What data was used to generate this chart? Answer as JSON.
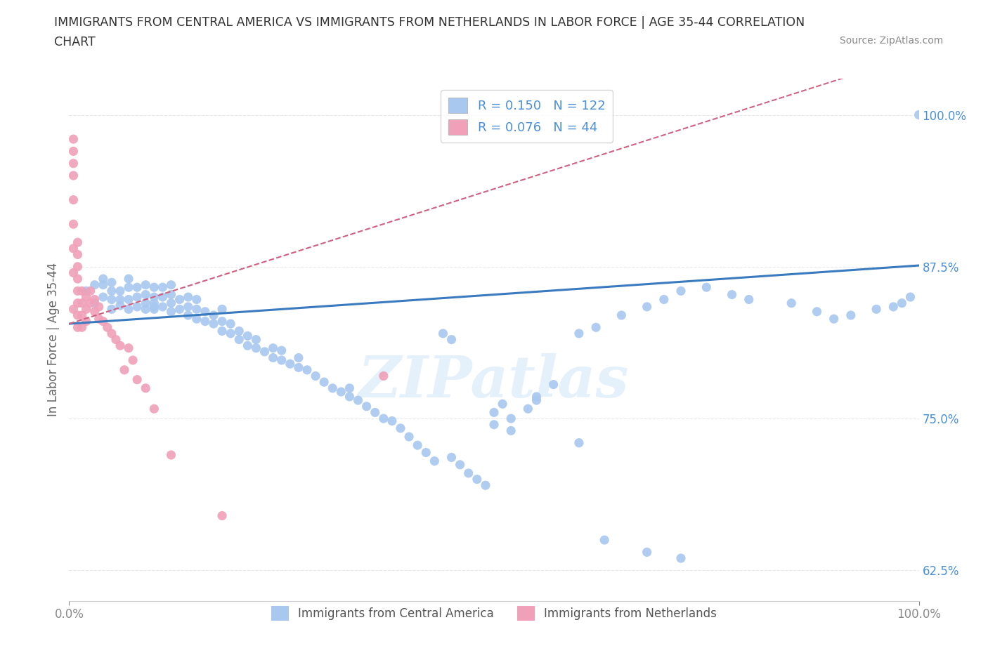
{
  "title_line1": "IMMIGRANTS FROM CENTRAL AMERICA VS IMMIGRANTS FROM NETHERLANDS IN LABOR FORCE | AGE 35-44 CORRELATION",
  "title_line2": "CHART",
  "source": "Source: ZipAtlas.com",
  "ylabel": "In Labor Force | Age 35-44",
  "R_blue": 0.15,
  "N_blue": 122,
  "R_pink": 0.076,
  "N_pink": 44,
  "color_blue": "#a8c8f0",
  "color_pink": "#f0a0b8",
  "trendline_blue": "#3a7abf",
  "trendline_pink": "#d06080",
  "legend_text_color": "#4a90d9",
  "background_color": "#ffffff",
  "grid_color": "#e8e8e8",
  "xlim": [
    0.0,
    1.0
  ],
  "ylim": [
    0.6,
    1.03
  ],
  "yticks": [
    0.625,
    0.75,
    0.875,
    1.0
  ],
  "ytick_labels": [
    "62.5%",
    "75.0%",
    "87.5%",
    "100.0%"
  ],
  "xtick_labels": [
    "0.0%",
    "100.0%"
  ],
  "watermark": "ZIPatlas",
  "blue_x": [
    0.02,
    0.03,
    0.03,
    0.04,
    0.04,
    0.04,
    0.05,
    0.05,
    0.05,
    0.05,
    0.06,
    0.06,
    0.06,
    0.07,
    0.07,
    0.07,
    0.07,
    0.08,
    0.08,
    0.08,
    0.09,
    0.09,
    0.09,
    0.09,
    0.1,
    0.1,
    0.1,
    0.1,
    0.1,
    0.11,
    0.11,
    0.11,
    0.12,
    0.12,
    0.12,
    0.12,
    0.13,
    0.13,
    0.14,
    0.14,
    0.14,
    0.15,
    0.15,
    0.15,
    0.16,
    0.16,
    0.17,
    0.17,
    0.18,
    0.18,
    0.18,
    0.19,
    0.19,
    0.2,
    0.2,
    0.21,
    0.21,
    0.22,
    0.22,
    0.23,
    0.24,
    0.24,
    0.25,
    0.25,
    0.26,
    0.27,
    0.27,
    0.28,
    0.29,
    0.3,
    0.31,
    0.32,
    0.33,
    0.33,
    0.34,
    0.35,
    0.36,
    0.37,
    0.38,
    0.39,
    0.4,
    0.41,
    0.42,
    0.43,
    0.45,
    0.46,
    0.47,
    0.48,
    0.49,
    0.5,
    0.51,
    0.52,
    0.54,
    0.55,
    0.57,
    0.6,
    0.62,
    0.65,
    0.68,
    0.7,
    0.72,
    0.75,
    0.78,
    0.8,
    0.85,
    0.88,
    0.9,
    0.92,
    0.95,
    0.97,
    0.98,
    0.99,
    1.0,
    0.44,
    0.45,
    0.5,
    0.52,
    0.55,
    0.6,
    0.63,
    0.68,
    0.72
  ],
  "blue_y": [
    0.855,
    0.845,
    0.86,
    0.85,
    0.86,
    0.865,
    0.848,
    0.855,
    0.862,
    0.84,
    0.843,
    0.855,
    0.848,
    0.848,
    0.858,
    0.865,
    0.84,
    0.842,
    0.85,
    0.858,
    0.845,
    0.852,
    0.86,
    0.84,
    0.842,
    0.85,
    0.858,
    0.845,
    0.84,
    0.842,
    0.85,
    0.858,
    0.838,
    0.845,
    0.852,
    0.86,
    0.84,
    0.848,
    0.835,
    0.842,
    0.85,
    0.832,
    0.84,
    0.848,
    0.83,
    0.838,
    0.828,
    0.835,
    0.822,
    0.83,
    0.84,
    0.82,
    0.828,
    0.815,
    0.822,
    0.81,
    0.818,
    0.808,
    0.815,
    0.805,
    0.8,
    0.808,
    0.798,
    0.806,
    0.795,
    0.792,
    0.8,
    0.79,
    0.785,
    0.78,
    0.775,
    0.772,
    0.768,
    0.775,
    0.765,
    0.76,
    0.755,
    0.75,
    0.748,
    0.742,
    0.735,
    0.728,
    0.722,
    0.715,
    0.718,
    0.712,
    0.705,
    0.7,
    0.695,
    0.755,
    0.762,
    0.75,
    0.758,
    0.765,
    0.778,
    0.82,
    0.825,
    0.835,
    0.842,
    0.848,
    0.855,
    0.858,
    0.852,
    0.848,
    0.845,
    0.838,
    0.832,
    0.835,
    0.84,
    0.842,
    0.845,
    0.85,
    1.0,
    0.82,
    0.815,
    0.745,
    0.74,
    0.768,
    0.73,
    0.65,
    0.64,
    0.635
  ],
  "pink_x": [
    0.005,
    0.005,
    0.005,
    0.005,
    0.005,
    0.005,
    0.005,
    0.005,
    0.005,
    0.01,
    0.01,
    0.01,
    0.01,
    0.01,
    0.01,
    0.01,
    0.01,
    0.015,
    0.015,
    0.015,
    0.015,
    0.02,
    0.02,
    0.02,
    0.025,
    0.025,
    0.03,
    0.03,
    0.035,
    0.035,
    0.04,
    0.045,
    0.05,
    0.055,
    0.06,
    0.065,
    0.07,
    0.075,
    0.08,
    0.09,
    0.1,
    0.12,
    0.18,
    0.37
  ],
  "pink_y": [
    0.87,
    0.89,
    0.91,
    0.93,
    0.95,
    0.96,
    0.97,
    0.98,
    0.84,
    0.845,
    0.855,
    0.865,
    0.875,
    0.885,
    0.895,
    0.835,
    0.825,
    0.845,
    0.855,
    0.835,
    0.825,
    0.85,
    0.84,
    0.83,
    0.845,
    0.855,
    0.838,
    0.848,
    0.832,
    0.842,
    0.83,
    0.825,
    0.82,
    0.815,
    0.81,
    0.79,
    0.808,
    0.798,
    0.782,
    0.775,
    0.758,
    0.72,
    0.67,
    0.785
  ]
}
